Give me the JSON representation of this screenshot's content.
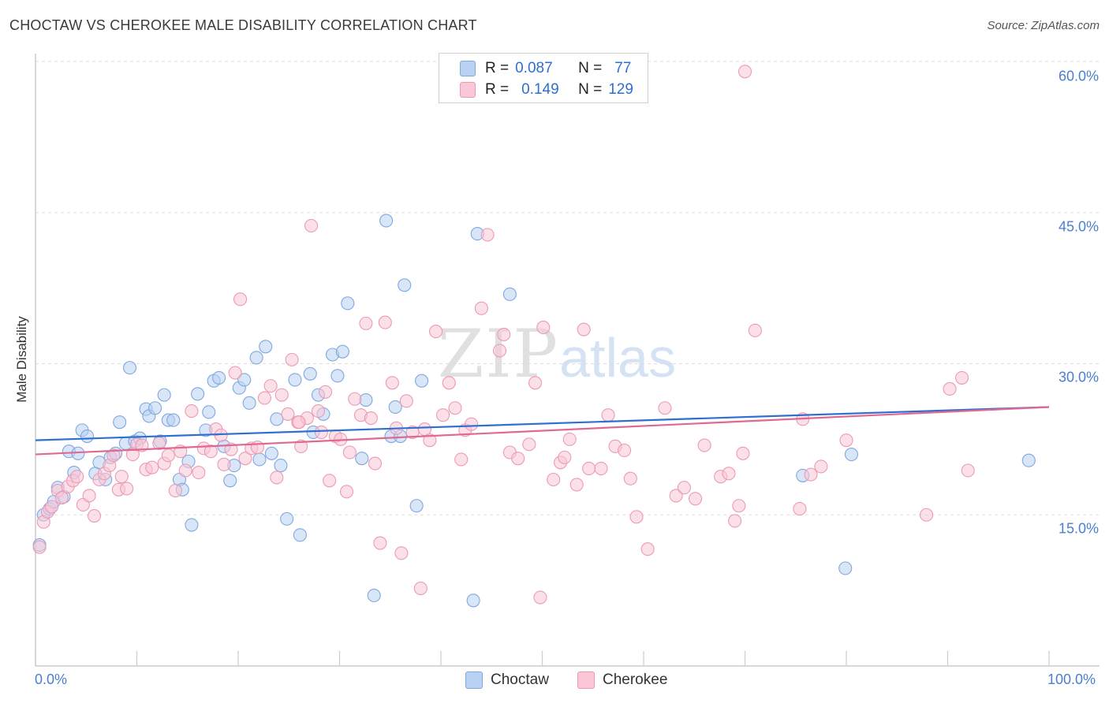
{
  "header": {
    "title": "CHOCTAW VS CHEROKEE MALE DISABILITY CORRELATION CHART",
    "source": "Source: ZipAtlas.com"
  },
  "legend": {
    "choctaw": {
      "r_label": "R =",
      "r_value": "0.087",
      "n_label": "N =",
      "n_value": "77"
    },
    "cherokee": {
      "r_label": "R =",
      "r_value": "0.149",
      "n_label": "N =",
      "n_value": "129"
    }
  },
  "colors": {
    "choctaw_fill": "#b9d1f3",
    "choctaw_stroke": "#7fa8e0",
    "choctaw_line": "#2f6fcf",
    "cherokee_fill": "#f9c7d6",
    "cherokee_stroke": "#ec9ab4",
    "cherokee_line": "#e06992",
    "grid": "#dddddd",
    "axis": "#cccccc"
  },
  "watermark": {
    "zip": "ZIP",
    "atlas": "atlas"
  },
  "chart_data": {
    "type": "scatter",
    "title": "CHOCTAW VS CHEROKEE MALE DISABILITY CORRELATION CHART",
    "xlabel": "",
    "ylabel": "Male Disability",
    "xlim": [
      0,
      100
    ],
    "ylim": [
      0,
      60
    ],
    "x_tick_labels": [
      "0.0%",
      "100.0%"
    ],
    "y_ticks": [
      15,
      30,
      45,
      60
    ],
    "y_tick_labels": [
      "15.0%",
      "30.0%",
      "45.0%",
      "60.0%"
    ],
    "grid": "horizontal dashed",
    "series": [
      {
        "name": "Choctaw",
        "r": 0.087,
        "n": 77,
        "trend": {
          "x": [
            0,
            100
          ],
          "y": [
            22.4,
            25.7
          ]
        },
        "points": [
          [
            0.4,
            12.0
          ],
          [
            0.8,
            15.0
          ],
          [
            1.4,
            15.6
          ],
          [
            1.8,
            16.3
          ],
          [
            2.2,
            17.7
          ],
          [
            2.8,
            16.8
          ],
          [
            3.3,
            21.3
          ],
          [
            3.8,
            19.2
          ],
          [
            4.2,
            21.1
          ],
          [
            4.6,
            23.4
          ],
          [
            5.1,
            22.8
          ],
          [
            5.9,
            19.1
          ],
          [
            6.3,
            20.2
          ],
          [
            6.9,
            18.5
          ],
          [
            7.4,
            20.7
          ],
          [
            7.9,
            21.1
          ],
          [
            8.3,
            24.2
          ],
          [
            8.9,
            22.1
          ],
          [
            9.3,
            29.6
          ],
          [
            9.8,
            22.3
          ],
          [
            10.3,
            22.6
          ],
          [
            10.9,
            25.5
          ],
          [
            11.2,
            24.8
          ],
          [
            11.8,
            25.6
          ],
          [
            12.3,
            22.3
          ],
          [
            12.7,
            26.9
          ],
          [
            13.1,
            24.4
          ],
          [
            13.6,
            24.4
          ],
          [
            14.2,
            18.5
          ],
          [
            14.5,
            17.5
          ],
          [
            15.1,
            20.3
          ],
          [
            15.4,
            14.0
          ],
          [
            16.0,
            27.0
          ],
          [
            16.8,
            23.4
          ],
          [
            17.1,
            25.2
          ],
          [
            17.6,
            28.3
          ],
          [
            18.1,
            28.6
          ],
          [
            18.6,
            21.8
          ],
          [
            19.2,
            18.4
          ],
          [
            19.6,
            19.9
          ],
          [
            20.1,
            27.6
          ],
          [
            20.6,
            28.4
          ],
          [
            21.1,
            26.1
          ],
          [
            21.8,
            30.6
          ],
          [
            22.1,
            20.5
          ],
          [
            22.7,
            31.7
          ],
          [
            23.3,
            21.1
          ],
          [
            23.8,
            24.5
          ],
          [
            24.2,
            19.9
          ],
          [
            24.8,
            14.6
          ],
          [
            25.6,
            28.4
          ],
          [
            26.1,
            13.0
          ],
          [
            27.1,
            29.0
          ],
          [
            27.4,
            23.2
          ],
          [
            27.9,
            26.9
          ],
          [
            28.4,
            25.0
          ],
          [
            29.3,
            30.9
          ],
          [
            29.8,
            28.8
          ],
          [
            30.3,
            31.2
          ],
          [
            30.8,
            36.0
          ],
          [
            32.2,
            20.6
          ],
          [
            32.6,
            26.4
          ],
          [
            33.4,
            7.0
          ],
          [
            34.6,
            44.2
          ],
          [
            35.1,
            22.8
          ],
          [
            35.5,
            25.7
          ],
          [
            36.0,
            22.8
          ],
          [
            36.4,
            37.8
          ],
          [
            37.6,
            15.9
          ],
          [
            38.1,
            28.3
          ],
          [
            43.2,
            6.5
          ],
          [
            43.6,
            42.9
          ],
          [
            46.8,
            36.9
          ],
          [
            75.7,
            18.9
          ],
          [
            79.9,
            9.7
          ],
          [
            80.5,
            21.0
          ],
          [
            98.0,
            20.4
          ]
        ]
      },
      {
        "name": "Cherokee",
        "r": 0.149,
        "n": 129,
        "trend": {
          "x": [
            0,
            100
          ],
          "y": [
            21.0,
            25.7
          ]
        },
        "points": [
          [
            0.4,
            11.8
          ],
          [
            0.8,
            14.3
          ],
          [
            1.2,
            15.3
          ],
          [
            1.6,
            15.8
          ],
          [
            2.2,
            17.4
          ],
          [
            2.6,
            16.7
          ],
          [
            3.2,
            17.8
          ],
          [
            3.7,
            18.4
          ],
          [
            4.1,
            18.8
          ],
          [
            4.7,
            16.0
          ],
          [
            5.3,
            16.9
          ],
          [
            5.8,
            14.9
          ],
          [
            6.3,
            18.5
          ],
          [
            6.8,
            19.1
          ],
          [
            7.3,
            19.9
          ],
          [
            7.7,
            20.9
          ],
          [
            8.2,
            17.5
          ],
          [
            8.5,
            18.8
          ],
          [
            9.0,
            17.6
          ],
          [
            9.6,
            21.0
          ],
          [
            10.0,
            22.0
          ],
          [
            10.5,
            21.9
          ],
          [
            10.9,
            19.5
          ],
          [
            11.5,
            19.7
          ],
          [
            12.2,
            22.1
          ],
          [
            12.7,
            20.1
          ],
          [
            13.1,
            20.9
          ],
          [
            13.8,
            17.4
          ],
          [
            14.3,
            21.3
          ],
          [
            14.8,
            19.4
          ],
          [
            15.4,
            25.3
          ],
          [
            16.1,
            19.2
          ],
          [
            16.6,
            21.6
          ],
          [
            17.3,
            21.3
          ],
          [
            17.8,
            23.5
          ],
          [
            18.3,
            22.9
          ],
          [
            18.6,
            20.0
          ],
          [
            19.3,
            21.5
          ],
          [
            19.7,
            29.1
          ],
          [
            20.2,
            36.4
          ],
          [
            20.7,
            20.6
          ],
          [
            21.3,
            21.6
          ],
          [
            21.9,
            21.7
          ],
          [
            22.6,
            26.6
          ],
          [
            23.2,
            27.8
          ],
          [
            23.8,
            18.7
          ],
          [
            24.3,
            26.9
          ],
          [
            24.9,
            25.0
          ],
          [
            25.3,
            30.4
          ],
          [
            25.9,
            24.2
          ],
          [
            26.2,
            21.8
          ],
          [
            26.8,
            24.6
          ],
          [
            27.2,
            43.7
          ],
          [
            27.9,
            25.3
          ],
          [
            28.2,
            23.2
          ],
          [
            28.6,
            27.2
          ],
          [
            29.0,
            18.4
          ],
          [
            29.6,
            22.8
          ],
          [
            30.1,
            22.5
          ],
          [
            30.7,
            17.3
          ],
          [
            31.0,
            21.2
          ],
          [
            31.5,
            26.5
          ],
          [
            32.1,
            24.9
          ],
          [
            32.6,
            34.0
          ],
          [
            33.1,
            24.6
          ],
          [
            33.5,
            20.1
          ],
          [
            34.0,
            12.2
          ],
          [
            34.5,
            34.1
          ],
          [
            35.2,
            28.1
          ],
          [
            35.6,
            23.6
          ],
          [
            36.1,
            11.2
          ],
          [
            36.6,
            26.3
          ],
          [
            37.2,
            23.2
          ],
          [
            38.0,
            7.7
          ],
          [
            38.4,
            23.5
          ],
          [
            38.9,
            22.4
          ],
          [
            39.5,
            33.2
          ],
          [
            40.2,
            24.9
          ],
          [
            40.8,
            28.1
          ],
          [
            41.4,
            25.6
          ],
          [
            42.0,
            20.5
          ],
          [
            42.4,
            23.4
          ],
          [
            43.0,
            24.0
          ],
          [
            44.0,
            35.5
          ],
          [
            44.6,
            42.8
          ],
          [
            45.8,
            31.3
          ],
          [
            46.2,
            32.9
          ],
          [
            46.8,
            21.2
          ],
          [
            47.6,
            20.6
          ],
          [
            48.7,
            22.0
          ],
          [
            49.3,
            28.1
          ],
          [
            49.8,
            6.8
          ],
          [
            50.1,
            33.6
          ],
          [
            51.1,
            18.5
          ],
          [
            51.8,
            20.2
          ],
          [
            52.2,
            20.7
          ],
          [
            52.7,
            22.5
          ],
          [
            53.4,
            18.0
          ],
          [
            54.1,
            33.4
          ],
          [
            54.6,
            19.6
          ],
          [
            55.8,
            19.6
          ],
          [
            57.2,
            21.8
          ],
          [
            58.1,
            21.4
          ],
          [
            58.7,
            18.6
          ],
          [
            59.3,
            14.8
          ],
          [
            60.4,
            11.6
          ],
          [
            62.1,
            25.6
          ],
          [
            63.2,
            16.9
          ],
          [
            64.0,
            17.7
          ],
          [
            65.1,
            16.6
          ],
          [
            66.0,
            21.9
          ],
          [
            67.6,
            18.8
          ],
          [
            68.4,
            19.1
          ],
          [
            69.0,
            14.4
          ],
          [
            69.4,
            15.9
          ],
          [
            69.8,
            21.1
          ],
          [
            71.0,
            33.3
          ],
          [
            75.4,
            15.6
          ],
          [
            75.7,
            24.5
          ],
          [
            76.5,
            19.0
          ],
          [
            77.5,
            19.8
          ],
          [
            80.0,
            22.4
          ],
          [
            87.9,
            15.0
          ],
          [
            90.2,
            27.5
          ],
          [
            91.4,
            28.6
          ],
          [
            92.0,
            19.4
          ],
          [
            70.0,
            59.0
          ],
          [
            26.0,
            24.2
          ],
          [
            56.5,
            24.9
          ]
        ]
      }
    ]
  }
}
